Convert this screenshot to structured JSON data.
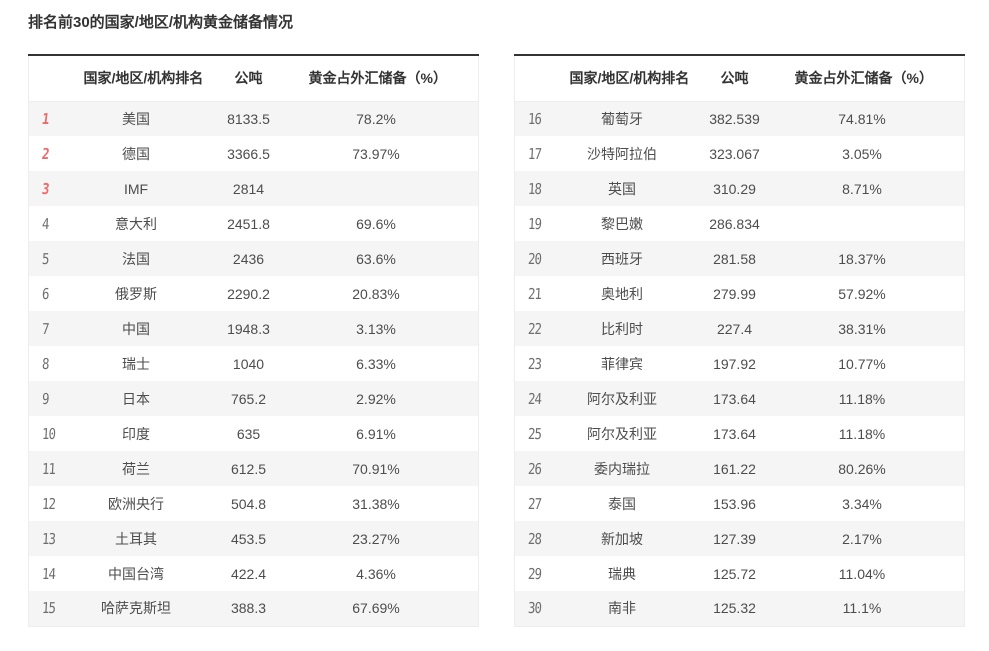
{
  "chart_data": {
    "type": "table",
    "title": "排名前30的国家/地区/机构黄金储备情况",
    "columns": {
      "rank": "",
      "name": "国家/地区/机构排名",
      "tons": "公吨",
      "pct": "黄金占外汇储备（%）"
    },
    "layout_hint": "two side-by-side tables, ranks 1-15 left, 16-30 right, zebra striping on odd rows, ranks 1-3 highlighted red",
    "tables": [
      {
        "rows": [
          {
            "rank": "1",
            "name": "美国",
            "tons": "8133.5",
            "pct": "78.2%",
            "accent": true
          },
          {
            "rank": "2",
            "name": "德国",
            "tons": "3366.5",
            "pct": "73.97%",
            "accent": true
          },
          {
            "rank": "3",
            "name": "IMF",
            "tons": "2814",
            "pct": "",
            "accent": true
          },
          {
            "rank": "4",
            "name": "意大利",
            "tons": "2451.8",
            "pct": "69.6%",
            "accent": false
          },
          {
            "rank": "5",
            "name": "法国",
            "tons": "2436",
            "pct": "63.6%",
            "accent": false
          },
          {
            "rank": "6",
            "name": "俄罗斯",
            "tons": "2290.2",
            "pct": "20.83%",
            "accent": false
          },
          {
            "rank": "7",
            "name": "中国",
            "tons": "1948.3",
            "pct": "3.13%",
            "accent": false
          },
          {
            "rank": "8",
            "name": "瑞士",
            "tons": "1040",
            "pct": "6.33%",
            "accent": false
          },
          {
            "rank": "9",
            "name": "日本",
            "tons": "765.2",
            "pct": "2.92%",
            "accent": false
          },
          {
            "rank": "10",
            "name": "印度",
            "tons": "635",
            "pct": "6.91%",
            "accent": false
          },
          {
            "rank": "11",
            "name": "荷兰",
            "tons": "612.5",
            "pct": "70.91%",
            "accent": false
          },
          {
            "rank": "12",
            "name": "欧洲央行",
            "tons": "504.8",
            "pct": "31.38%",
            "accent": false
          },
          {
            "rank": "13",
            "name": "土耳其",
            "tons": "453.5",
            "pct": "23.27%",
            "accent": false
          },
          {
            "rank": "14",
            "name": "中国台湾",
            "tons": "422.4",
            "pct": "4.36%",
            "accent": false
          },
          {
            "rank": "15",
            "name": "哈萨克斯坦",
            "tons": "388.3",
            "pct": "67.69%",
            "accent": false
          }
        ]
      },
      {
        "rows": [
          {
            "rank": "16",
            "name": "葡萄牙",
            "tons": "382.539",
            "pct": "74.81%",
            "accent": false
          },
          {
            "rank": "17",
            "name": "沙特阿拉伯",
            "tons": "323.067",
            "pct": "3.05%",
            "accent": false
          },
          {
            "rank": "18",
            "name": "英国",
            "tons": "310.29",
            "pct": "8.71%",
            "accent": false
          },
          {
            "rank": "19",
            "name": "黎巴嫩",
            "tons": "286.834",
            "pct": "",
            "accent": false
          },
          {
            "rank": "20",
            "name": "西班牙",
            "tons": "281.58",
            "pct": "18.37%",
            "accent": false
          },
          {
            "rank": "21",
            "name": "奥地利",
            "tons": "279.99",
            "pct": "57.92%",
            "accent": false
          },
          {
            "rank": "22",
            "name": "比利时",
            "tons": "227.4",
            "pct": "38.31%",
            "accent": false
          },
          {
            "rank": "23",
            "name": "菲律宾",
            "tons": "197.92",
            "pct": "10.77%",
            "accent": false
          },
          {
            "rank": "24",
            "name": "阿尔及利亚",
            "tons": "173.64",
            "pct": "11.18%",
            "accent": false
          },
          {
            "rank": "25",
            "name": "阿尔及利亚",
            "tons": "173.64",
            "pct": "11.18%",
            "accent": false
          },
          {
            "rank": "26",
            "name": "委内瑞拉",
            "tons": "161.22",
            "pct": "80.26%",
            "accent": false
          },
          {
            "rank": "27",
            "name": "泰国",
            "tons": "153.96",
            "pct": "3.34%",
            "accent": false
          },
          {
            "rank": "28",
            "name": "新加坡",
            "tons": "127.39",
            "pct": "2.17%",
            "accent": false
          },
          {
            "rank": "29",
            "name": "瑞典",
            "tons": "125.72",
            "pct": "11.04%",
            "accent": false
          },
          {
            "rank": "30",
            "name": "南非",
            "tons": "125.32",
            "pct": "11.1%",
            "accent": false
          }
        ]
      }
    ]
  },
  "colors": {
    "rank_accent": "#ee6a6a",
    "zebra_stripe": "#f5f5f5",
    "table_top_border": "#333333",
    "header_text": "#333333",
    "cell_text": "#4d4d4d"
  }
}
